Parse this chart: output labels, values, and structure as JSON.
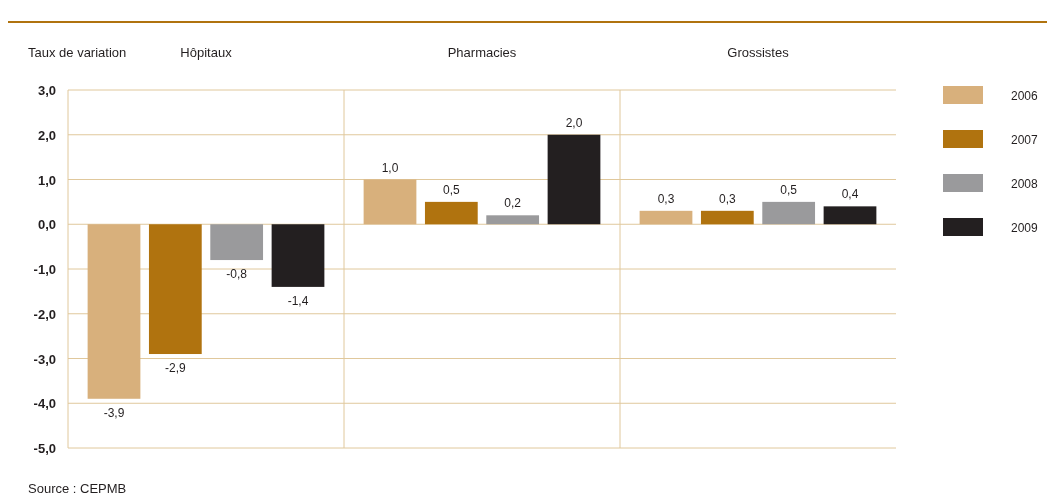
{
  "chart_data": {
    "type": "bar",
    "ylabel": "Taux de variation",
    "categories": [
      "Hôpitaux",
      "Pharmacies",
      "Grossistes"
    ],
    "series": [
      {
        "name": "2006",
        "color": "#d8b07c",
        "values": [
          -3.9,
          1.0,
          0.3
        ],
        "value_labels": [
          "-3,9",
          "1,0",
          "0,3"
        ]
      },
      {
        "name": "2007",
        "color": "#b0730f",
        "values": [
          -2.9,
          0.5,
          0.3
        ],
        "value_labels": [
          "-2,9",
          "0,5",
          "0,3"
        ]
      },
      {
        "name": "2008",
        "color": "#9a9a9c",
        "values": [
          -0.8,
          0.2,
          0.5
        ],
        "value_labels": [
          "-0,8",
          "0,2",
          "0,5"
        ]
      },
      {
        "name": "2009",
        "color": "#231f20",
        "values": [
          -1.4,
          2.0,
          0.4
        ],
        "value_labels": [
          "-1,4",
          "2,0",
          "0,4"
        ]
      }
    ],
    "ylim": [
      -5,
      3
    ],
    "yticks": [
      {
        "value": 3,
        "label": "3,0"
      },
      {
        "value": 2,
        "label": "2,0"
      },
      {
        "value": 1,
        "label": "1,0"
      },
      {
        "value": 0,
        "label": "0,0"
      },
      {
        "value": -1,
        "label": "-1,0"
      },
      {
        "value": -2,
        "label": "-2,0"
      },
      {
        "value": -3,
        "label": "-3,0"
      },
      {
        "value": -4,
        "label": "-4,0"
      },
      {
        "value": -5,
        "label": "-5,0"
      }
    ],
    "grid": "y",
    "legend": "right",
    "annotations": [
      "Source : CEPMB"
    ]
  }
}
